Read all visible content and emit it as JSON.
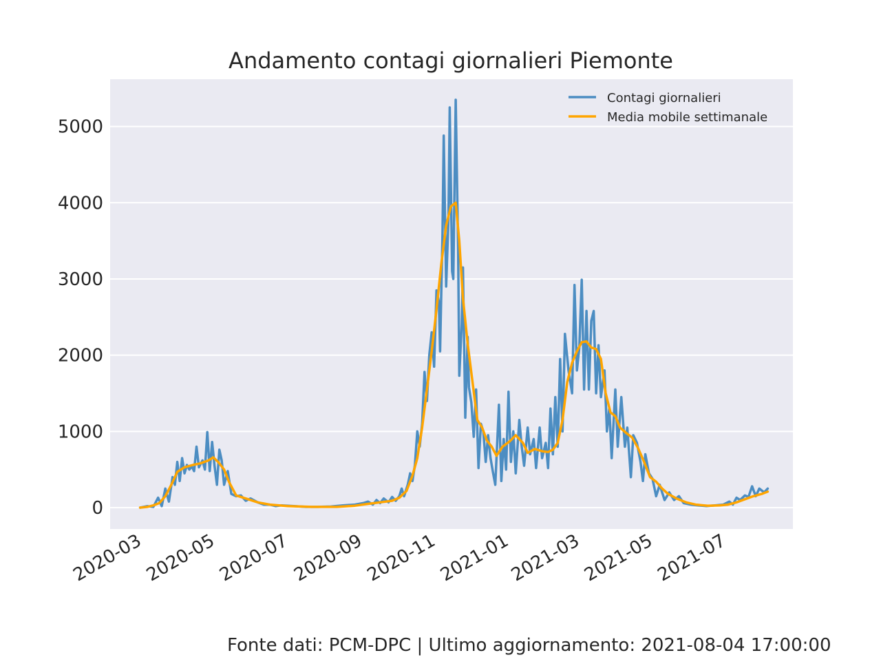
{
  "chart_data": {
    "type": "line",
    "title": "Andamento contagi giornalieri Piemonte",
    "xlabel": "",
    "ylabel": "",
    "x_type": "date",
    "xlim": [
      "2020-02-03",
      "2021-08-25"
    ],
    "ylim": [
      -280,
      5620
    ],
    "y_ticks": [
      0,
      1000,
      2000,
      3000,
      4000,
      5000
    ],
    "x_tick_labels": [
      "2020-03",
      "2020-05",
      "2020-07",
      "2020-09",
      "2020-11",
      "2021-01",
      "2021-03",
      "2021-05",
      "2021-07"
    ],
    "x_tick_dates": [
      "2020-03-01",
      "2020-05-01",
      "2020-07-01",
      "2020-09-01",
      "2020-11-01",
      "2021-01-01",
      "2021-03-01",
      "2021-05-01",
      "2021-07-01"
    ],
    "grid": true,
    "legend": "top-right",
    "series": [
      {
        "name": "Contagi giornalieri",
        "color": "#4c8dc2",
        "points": [
          [
            "2020-02-28",
            0
          ],
          [
            "2020-03-05",
            20
          ],
          [
            "2020-03-10",
            10
          ],
          [
            "2020-03-14",
            130
          ],
          [
            "2020-03-17",
            20
          ],
          [
            "2020-03-20",
            250
          ],
          [
            "2020-03-23",
            80
          ],
          [
            "2020-03-26",
            400
          ],
          [
            "2020-03-28",
            300
          ],
          [
            "2020-03-30",
            600
          ],
          [
            "2020-04-01",
            350
          ],
          [
            "2020-04-03",
            650
          ],
          [
            "2020-04-05",
            450
          ],
          [
            "2020-04-07",
            560
          ],
          [
            "2020-04-09",
            500
          ],
          [
            "2020-04-11",
            540
          ],
          [
            "2020-04-13",
            480
          ],
          [
            "2020-04-15",
            800
          ],
          [
            "2020-04-17",
            530
          ],
          [
            "2020-04-20",
            620
          ],
          [
            "2020-04-22",
            500
          ],
          [
            "2020-04-24",
            990
          ],
          [
            "2020-04-26",
            480
          ],
          [
            "2020-04-28",
            860
          ],
          [
            "2020-04-30",
            550
          ],
          [
            "2020-05-02",
            300
          ],
          [
            "2020-05-04",
            760
          ],
          [
            "2020-05-06",
            620
          ],
          [
            "2020-05-08",
            300
          ],
          [
            "2020-05-11",
            480
          ],
          [
            "2020-05-14",
            180
          ],
          [
            "2020-05-18",
            150
          ],
          [
            "2020-05-22",
            160
          ],
          [
            "2020-05-26",
            90
          ],
          [
            "2020-05-30",
            120
          ],
          [
            "2020-06-05",
            70
          ],
          [
            "2020-06-10",
            40
          ],
          [
            "2020-06-15",
            40
          ],
          [
            "2020-06-20",
            20
          ],
          [
            "2020-06-25",
            30
          ],
          [
            "2020-07-05",
            20
          ],
          [
            "2020-07-15",
            10
          ],
          [
            "2020-07-25",
            10
          ],
          [
            "2020-08-05",
            15
          ],
          [
            "2020-08-15",
            30
          ],
          [
            "2020-08-25",
            40
          ],
          [
            "2020-09-01",
            60
          ],
          [
            "2020-09-05",
            80
          ],
          [
            "2020-09-09",
            40
          ],
          [
            "2020-09-12",
            100
          ],
          [
            "2020-09-15",
            60
          ],
          [
            "2020-09-18",
            120
          ],
          [
            "2020-09-22",
            70
          ],
          [
            "2020-09-25",
            140
          ],
          [
            "2020-09-28",
            90
          ],
          [
            "2020-10-01",
            150
          ],
          [
            "2020-10-03",
            250
          ],
          [
            "2020-10-05",
            150
          ],
          [
            "2020-10-08",
            300
          ],
          [
            "2020-10-10",
            450
          ],
          [
            "2020-10-12",
            350
          ],
          [
            "2020-10-14",
            560
          ],
          [
            "2020-10-16",
            1000
          ],
          [
            "2020-10-18",
            800
          ],
          [
            "2020-10-20",
            1100
          ],
          [
            "2020-10-22",
            1780
          ],
          [
            "2020-10-24",
            1400
          ],
          [
            "2020-10-26",
            2000
          ],
          [
            "2020-10-28",
            2300
          ],
          [
            "2020-10-30",
            1850
          ],
          [
            "2020-11-01",
            2850
          ],
          [
            "2020-11-03",
            2700
          ],
          [
            "2020-11-04",
            2050
          ],
          [
            "2020-11-06",
            3600
          ],
          [
            "2020-11-07",
            4880
          ],
          [
            "2020-11-09",
            2900
          ],
          [
            "2020-11-11",
            3800
          ],
          [
            "2020-11-12",
            5250
          ],
          [
            "2020-11-14",
            3100
          ],
          [
            "2020-11-15",
            3000
          ],
          [
            "2020-11-17",
            5350
          ],
          [
            "2020-11-19",
            3400
          ],
          [
            "2020-11-20",
            1730
          ],
          [
            "2020-11-22",
            2400
          ],
          [
            "2020-11-23",
            3150
          ],
          [
            "2020-11-25",
            1180
          ],
          [
            "2020-11-27",
            2240
          ],
          [
            "2020-11-28",
            1580
          ],
          [
            "2020-11-30",
            1380
          ],
          [
            "2020-12-02",
            930
          ],
          [
            "2020-12-04",
            1550
          ],
          [
            "2020-12-06",
            520
          ],
          [
            "2020-12-08",
            1100
          ],
          [
            "2020-12-10",
            1000
          ],
          [
            "2020-12-12",
            600
          ],
          [
            "2020-12-14",
            950
          ],
          [
            "2020-12-16",
            650
          ],
          [
            "2020-12-18",
            470
          ],
          [
            "2020-12-20",
            300
          ],
          [
            "2020-12-23",
            1350
          ],
          [
            "2020-12-25",
            350
          ],
          [
            "2020-12-27",
            900
          ],
          [
            "2020-12-29",
            500
          ],
          [
            "2020-12-31",
            1520
          ],
          [
            "2021-01-02",
            600
          ],
          [
            "2021-01-04",
            1000
          ],
          [
            "2021-01-06",
            450
          ],
          [
            "2021-01-09",
            1150
          ],
          [
            "2021-01-11",
            800
          ],
          [
            "2021-01-13",
            550
          ],
          [
            "2021-01-16",
            1050
          ],
          [
            "2021-01-18",
            700
          ],
          [
            "2021-01-21",
            900
          ],
          [
            "2021-01-23",
            520
          ],
          [
            "2021-01-26",
            1050
          ],
          [
            "2021-01-28",
            650
          ],
          [
            "2021-01-31",
            850
          ],
          [
            "2021-02-02",
            520
          ],
          [
            "2021-02-04",
            1300
          ],
          [
            "2021-02-06",
            700
          ],
          [
            "2021-02-08",
            1450
          ],
          [
            "2021-02-10",
            800
          ],
          [
            "2021-02-12",
            1950
          ],
          [
            "2021-02-14",
            1000
          ],
          [
            "2021-02-16",
            2280
          ],
          [
            "2021-02-19",
            1800
          ],
          [
            "2021-02-22",
            1500
          ],
          [
            "2021-02-24",
            2920
          ],
          [
            "2021-02-26",
            1800
          ],
          [
            "2021-02-28",
            2100
          ],
          [
            "2021-03-02",
            2990
          ],
          [
            "2021-03-04",
            1550
          ],
          [
            "2021-03-06",
            2580
          ],
          [
            "2021-03-08",
            1550
          ],
          [
            "2021-03-10",
            2450
          ],
          [
            "2021-03-12",
            2580
          ],
          [
            "2021-03-14",
            1500
          ],
          [
            "2021-03-16",
            2130
          ],
          [
            "2021-03-18",
            1450
          ],
          [
            "2021-03-21",
            1800
          ],
          [
            "2021-03-23",
            1000
          ],
          [
            "2021-03-25",
            1300
          ],
          [
            "2021-03-27",
            650
          ],
          [
            "2021-03-30",
            1550
          ],
          [
            "2021-04-01",
            800
          ],
          [
            "2021-04-04",
            1450
          ],
          [
            "2021-04-07",
            800
          ],
          [
            "2021-04-09",
            1050
          ],
          [
            "2021-04-12",
            400
          ],
          [
            "2021-04-14",
            950
          ],
          [
            "2021-04-17",
            850
          ],
          [
            "2021-04-20",
            600
          ],
          [
            "2021-04-22",
            350
          ],
          [
            "2021-04-24",
            700
          ],
          [
            "2021-04-27",
            450
          ],
          [
            "2021-04-30",
            380
          ],
          [
            "2021-05-03",
            150
          ],
          [
            "2021-05-06",
            300
          ],
          [
            "2021-05-10",
            100
          ],
          [
            "2021-05-14",
            200
          ],
          [
            "2021-05-18",
            100
          ],
          [
            "2021-05-22",
            150
          ],
          [
            "2021-05-26",
            60
          ],
          [
            "2021-06-01",
            40
          ],
          [
            "2021-06-07",
            30
          ],
          [
            "2021-06-14",
            20
          ],
          [
            "2021-06-21",
            30
          ],
          [
            "2021-06-28",
            40
          ],
          [
            "2021-07-03",
            80
          ],
          [
            "2021-07-06",
            40
          ],
          [
            "2021-07-09",
            130
          ],
          [
            "2021-07-12",
            100
          ],
          [
            "2021-07-16",
            160
          ],
          [
            "2021-07-19",
            140
          ],
          [
            "2021-07-22",
            280
          ],
          [
            "2021-07-25",
            150
          ],
          [
            "2021-07-28",
            250
          ],
          [
            "2021-08-01",
            200
          ],
          [
            "2021-08-04",
            250
          ]
        ]
      },
      {
        "name": "Media mobile settimanale",
        "color": "#ffa500",
        "points": [
          [
            "2020-02-28",
            0
          ],
          [
            "2020-03-05",
            10
          ],
          [
            "2020-03-10",
            30
          ],
          [
            "2020-03-15",
            60
          ],
          [
            "2020-03-20",
            150
          ],
          [
            "2020-03-25",
            300
          ],
          [
            "2020-03-30",
            470
          ],
          [
            "2020-04-05",
            530
          ],
          [
            "2020-04-12",
            560
          ],
          [
            "2020-04-18",
            580
          ],
          [
            "2020-04-25",
            620
          ],
          [
            "2020-04-29",
            660
          ],
          [
            "2020-05-03",
            600
          ],
          [
            "2020-05-08",
            500
          ],
          [
            "2020-05-12",
            340
          ],
          [
            "2020-05-18",
            160
          ],
          [
            "2020-05-26",
            120
          ],
          [
            "2020-06-05",
            70
          ],
          [
            "2020-06-15",
            40
          ],
          [
            "2020-06-30",
            20
          ],
          [
            "2020-07-20",
            10
          ],
          [
            "2020-08-10",
            10
          ],
          [
            "2020-08-25",
            25
          ],
          [
            "2020-09-05",
            50
          ],
          [
            "2020-09-15",
            70
          ],
          [
            "2020-09-25",
            90
          ],
          [
            "2020-10-01",
            130
          ],
          [
            "2020-10-07",
            220
          ],
          [
            "2020-10-12",
            420
          ],
          [
            "2020-10-16",
            650
          ],
          [
            "2020-10-20",
            1050
          ],
          [
            "2020-10-24",
            1550
          ],
          [
            "2020-10-28",
            2050
          ],
          [
            "2020-11-01",
            2600
          ],
          [
            "2020-11-05",
            3200
          ],
          [
            "2020-11-09",
            3700
          ],
          [
            "2020-11-13",
            3950
          ],
          [
            "2020-11-17",
            4000
          ],
          [
            "2020-11-20",
            3500
          ],
          [
            "2020-11-23",
            2750
          ],
          [
            "2020-11-27",
            2150
          ],
          [
            "2020-12-01",
            1650
          ],
          [
            "2020-12-05",
            1150
          ],
          [
            "2020-12-09",
            1050
          ],
          [
            "2020-12-13",
            880
          ],
          [
            "2020-12-17",
            800
          ],
          [
            "2020-12-21",
            680
          ],
          [
            "2020-12-26",
            800
          ],
          [
            "2021-01-01",
            870
          ],
          [
            "2021-01-06",
            950
          ],
          [
            "2021-01-12",
            850
          ],
          [
            "2021-01-16",
            720
          ],
          [
            "2021-01-22",
            770
          ],
          [
            "2021-01-28",
            740
          ],
          [
            "2021-02-02",
            730
          ],
          [
            "2021-02-06",
            760
          ],
          [
            "2021-02-10",
            850
          ],
          [
            "2021-02-14",
            1150
          ],
          [
            "2021-02-18",
            1650
          ],
          [
            "2021-02-22",
            1900
          ],
          [
            "2021-02-26",
            2050
          ],
          [
            "2021-03-02",
            2170
          ],
          [
            "2021-03-06",
            2180
          ],
          [
            "2021-03-10",
            2100
          ],
          [
            "2021-03-14",
            2080
          ],
          [
            "2021-03-18",
            1950
          ],
          [
            "2021-03-22",
            1500
          ],
          [
            "2021-03-26",
            1250
          ],
          [
            "2021-03-30",
            1200
          ],
          [
            "2021-04-03",
            1050
          ],
          [
            "2021-04-08",
            980
          ],
          [
            "2021-04-13",
            920
          ],
          [
            "2021-04-18",
            780
          ],
          [
            "2021-04-23",
            600
          ],
          [
            "2021-04-28",
            400
          ],
          [
            "2021-05-03",
            340
          ],
          [
            "2021-05-08",
            250
          ],
          [
            "2021-05-13",
            180
          ],
          [
            "2021-05-20",
            120
          ],
          [
            "2021-05-28",
            70
          ],
          [
            "2021-06-05",
            40
          ],
          [
            "2021-06-15",
            25
          ],
          [
            "2021-06-25",
            30
          ],
          [
            "2021-07-02",
            40
          ],
          [
            "2021-07-09",
            70
          ],
          [
            "2021-07-16",
            110
          ],
          [
            "2021-07-23",
            150
          ],
          [
            "2021-07-30",
            180
          ],
          [
            "2021-08-04",
            210
          ]
        ]
      }
    ]
  },
  "footer": {
    "source_text": "Fonte dati: PCM-DPC | Ultimo aggiornamento: 2021-08-04 17:00:00"
  }
}
